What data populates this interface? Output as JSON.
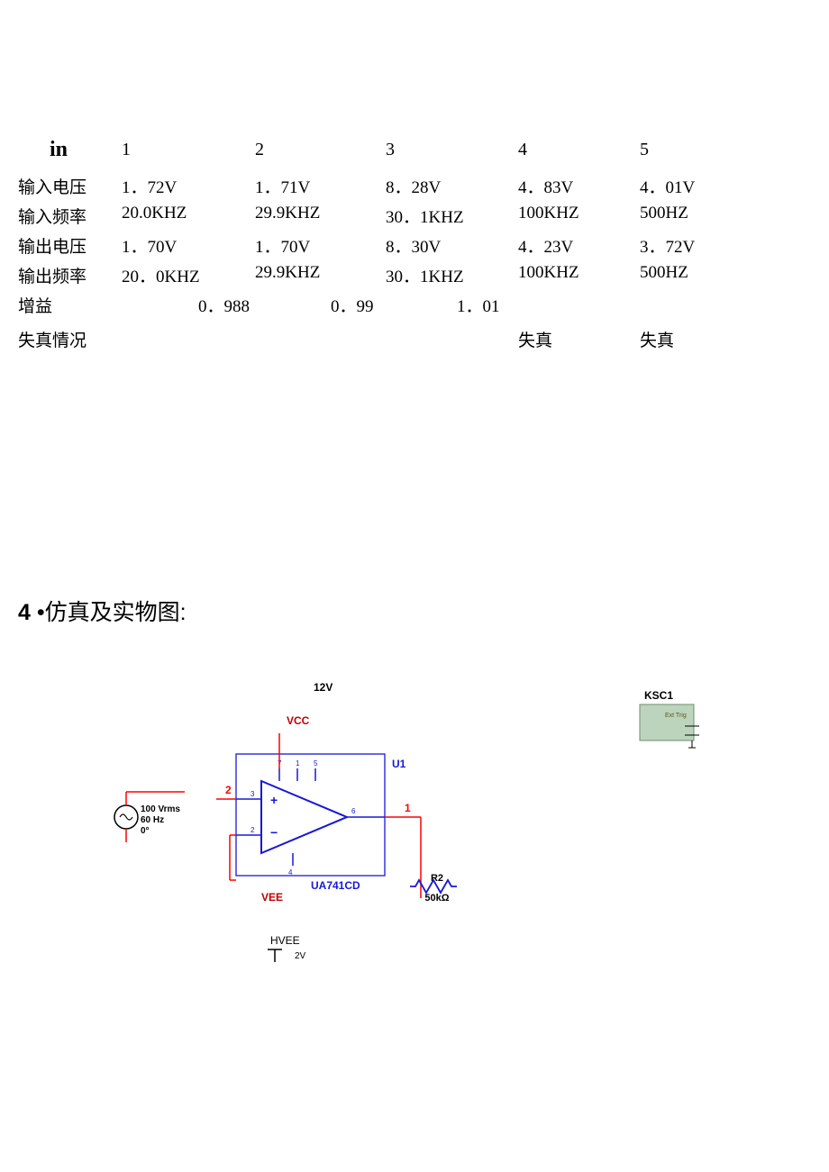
{
  "table": {
    "in_label": "in",
    "headers": [
      "1",
      "2",
      "3",
      "4",
      "5"
    ],
    "rows": [
      {
        "label": "输入电压",
        "cells": [
          "1．72V",
          "1．71V",
          "8．28V",
          "4．83V",
          "4．01V"
        ],
        "divider": false
      },
      {
        "label": "输入频率",
        "cells": [
          "20.0KHZ",
          "29.9KHZ",
          "30．1KHZ",
          "100KHZ",
          "500HZ"
        ],
        "divider": true
      },
      {
        "label": "输出电压",
        "cells": [
          "1．70V",
          "1．70V",
          "8．30V",
          "4．23V",
          "3．72V"
        ],
        "divider": false
      },
      {
        "label": "输出频率",
        "cells": [
          "20．0KHZ",
          "29.9KHZ",
          "30．1KHZ",
          "100KHZ",
          "500HZ"
        ],
        "divider": false
      }
    ],
    "gain": {
      "label": "增益",
      "vals": [
        "0．988",
        "0．99",
        "1．01"
      ]
    },
    "distortion": {
      "label": "失真情况",
      "col4": "失真",
      "col5": "失真"
    }
  },
  "heading": {
    "number": "4",
    "bullet": "•",
    "text": "仿真及实物图:"
  },
  "circuit": {
    "vcc_voltage": "12V",
    "vcc_label": "VCC",
    "vee_label": "VEE",
    "hvee_label": "HVEE",
    "hvee_voltage": "2V",
    "source": {
      "line1": "100 Vrms",
      "line2": "60 Hz",
      "line3": "0°"
    },
    "opamp": {
      "ref": "U1",
      "part": "UA741CD",
      "pin_plus": "3",
      "pin_minus": "2",
      "pin_out": "6",
      "pin_vp": "7",
      "pin_vn": "4",
      "pin_os1": "1",
      "pin_os2": "5"
    },
    "node_in": "2",
    "node_out": "1",
    "resistor": {
      "ref": "R2",
      "value": "50kΩ"
    },
    "scope": {
      "ref": "KSC1",
      "label": "Ext Trig"
    },
    "colors": {
      "wire": "#ff0000",
      "opamp": "#1818d8",
      "resistor": "#1818d8",
      "ground": "#000000",
      "scope_fill": "#bcd4bc",
      "scope_stroke": "#6e8e6e",
      "text_black": "#000000",
      "text_red": "#c00000"
    },
    "fonts": {
      "label_size": 11,
      "small_size": 8,
      "pin_size": 7
    }
  }
}
